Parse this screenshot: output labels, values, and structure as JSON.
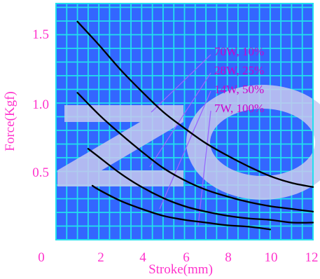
{
  "chart_data": {
    "type": "line",
    "xlabel": "Stroke(mm)",
    "ylabel": "Force(Kgf)",
    "xlim": [
      0,
      12
    ],
    "ylim": [
      0,
      1.7
    ],
    "x_ticks": [
      "0",
      "2",
      "4",
      "6",
      "8",
      "10",
      "12"
    ],
    "y_ticks": [
      "0.5",
      "1.0",
      "1.5"
    ],
    "grid": true,
    "colors": {
      "grid": "#22e0ee",
      "plot_background": "#3366ff",
      "curves": "#000000",
      "text": "#ff33cc",
      "label_text": "#cc00cc",
      "leader_lines": "#9966ff",
      "watermark": "#c8c8ee"
    },
    "watermark_text": "ZO",
    "series": [
      {
        "name": "70W, 10%",
        "x": [
          1,
          2,
          3,
          4,
          5,
          6,
          7,
          8,
          9,
          10,
          11,
          12
        ],
        "y": [
          1.57,
          1.4,
          1.22,
          1.06,
          0.91,
          0.79,
          0.68,
          0.59,
          0.51,
          0.44,
          0.39,
          0.36
        ]
      },
      {
        "name": "28W, 25%",
        "x": [
          1,
          2,
          3,
          4,
          5,
          6,
          7,
          8,
          9,
          10,
          11,
          12
        ],
        "y": [
          1.05,
          0.89,
          0.75,
          0.62,
          0.5,
          0.41,
          0.34,
          0.29,
          0.25,
          0.22,
          0.2,
          0.18
        ]
      },
      {
        "name": "14W, 50%",
        "x": [
          1.5,
          2,
          3,
          4,
          5,
          6,
          7,
          8,
          9,
          10,
          11,
          12
        ],
        "y": [
          0.64,
          0.58,
          0.46,
          0.36,
          0.28,
          0.22,
          0.18,
          0.15,
          0.13,
          0.12,
          0.1,
          0.1
        ]
      },
      {
        "name": "7W, 100%",
        "x": [
          1.7,
          2,
          3,
          4,
          5,
          6,
          7,
          8,
          9,
          10
        ],
        "y": [
          0.37,
          0.34,
          0.26,
          0.2,
          0.15,
          0.12,
          0.1,
          0.08,
          0.07,
          0.05
        ]
      }
    ],
    "series_labels": [
      "70W, 10%",
      "28W, 25%",
      "14W, 50%",
      "7W, 100%"
    ]
  }
}
